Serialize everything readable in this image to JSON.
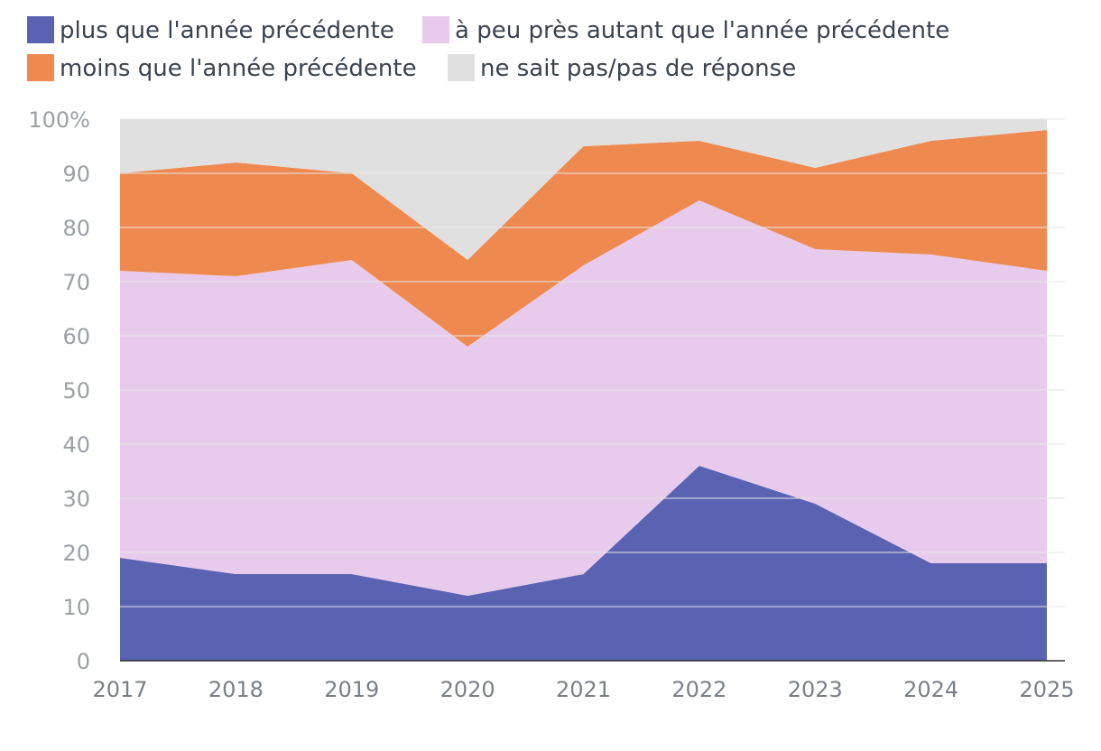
{
  "chart_data": {
    "type": "area",
    "stacked": true,
    "x": [
      "2017",
      "2018",
      "2019",
      "2020",
      "2021",
      "2022",
      "2023",
      "2024",
      "2025"
    ],
    "ylim": [
      0,
      100
    ],
    "y_ticks": [
      "0",
      "10",
      "20",
      "30",
      "40",
      "50",
      "60",
      "70",
      "80",
      "90",
      "100%"
    ],
    "grid": true,
    "legend_position": "top-left",
    "series": [
      {
        "name": "plus que l'année précédente",
        "color": "#5a63b2",
        "values": [
          19,
          16,
          16,
          12,
          16,
          36,
          29,
          18,
          18
        ]
      },
      {
        "name": "à peu près autant que l'année précédente",
        "color": "#e8cbec",
        "values": [
          53,
          55,
          58,
          46,
          57,
          49,
          47,
          57,
          54
        ]
      },
      {
        "name": "moins que l'année précédente",
        "color": "#ee8a50",
        "values": [
          18,
          21,
          16,
          16,
          22,
          11,
          15,
          21,
          26
        ]
      },
      {
        "name": "ne sait pas/pas de réponse",
        "color": "#e0e0e0",
        "values": [
          10,
          8,
          10,
          26,
          5,
          4,
          9,
          4,
          2
        ]
      }
    ]
  }
}
